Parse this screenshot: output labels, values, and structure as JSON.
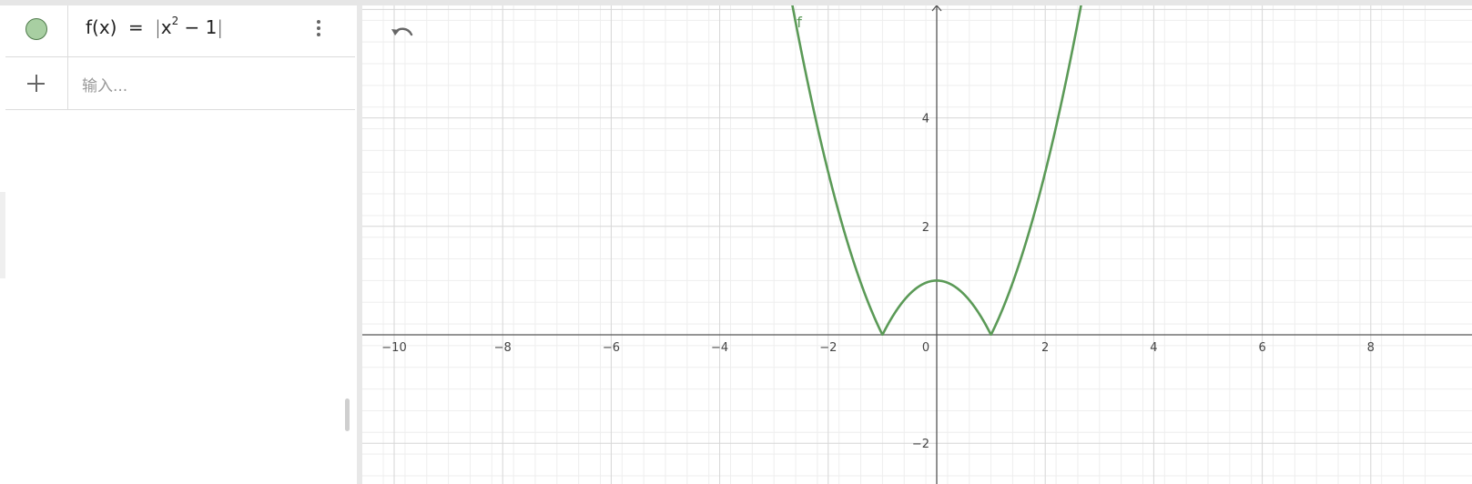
{
  "algebra": {
    "expression": {
      "label": "f(x)",
      "equals": "=",
      "base": "x",
      "exponent": "2",
      "rest": " − 1",
      "color": "#6aa56a"
    },
    "input_placeholder": "输入..."
  },
  "graph": {
    "function_label": "f",
    "curve_color": "#5b9a57",
    "x_axis": {
      "min": -10.6,
      "max": 9.1,
      "ticks": [
        -10,
        -8,
        -6,
        -4,
        -2,
        0,
        2,
        4,
        6,
        8
      ]
    },
    "y_axis": {
      "min": -2.5,
      "max": 6.0,
      "ticks": [
        -2,
        2,
        4
      ]
    },
    "grid": true
  }
}
